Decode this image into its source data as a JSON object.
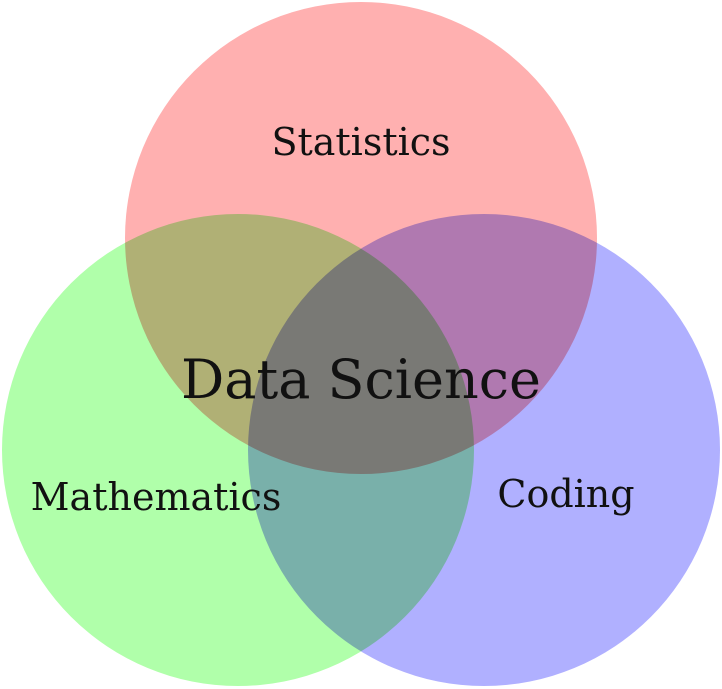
{
  "diagram": {
    "type": "venn",
    "sets": [
      {
        "key": "statistics",
        "label": "Statistics",
        "color": "#ffb0b0"
      },
      {
        "key": "mathematics",
        "label": "Mathematics",
        "color": "#b0ffaa"
      },
      {
        "key": "coding",
        "label": "Coding",
        "color": "#b0b0ff"
      }
    ],
    "center": {
      "label": "Data Science"
    }
  }
}
